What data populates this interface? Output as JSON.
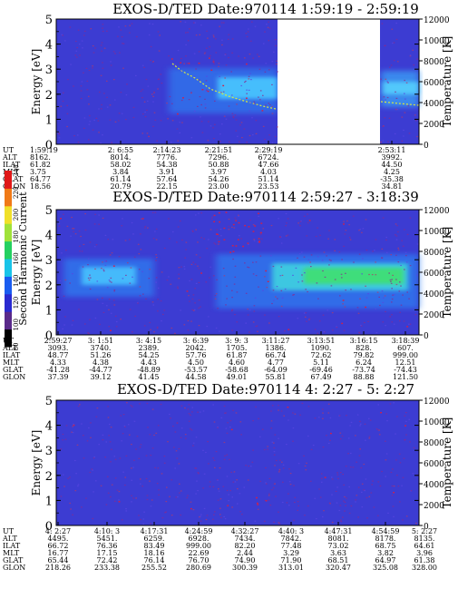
{
  "chart_data": [
    {
      "type": "heatmap",
      "title": "EXOS-D/TED   Date:970114  1:59:19 - 2:59:19",
      "ylabel": "Energy [eV]",
      "ylabel_right": "Temperature [K]",
      "ylim": [
        0,
        5
      ],
      "ylim_right": [
        0,
        12000
      ],
      "yticks": [
        "0",
        "1",
        "2",
        "3",
        "4",
        "5"
      ],
      "yticks_right": [
        "0",
        "2000",
        "4000",
        "6000",
        "8000",
        "10000",
        "12000"
      ],
      "data_gap": {
        "from": "2:33",
        "to": "2:53"
      },
      "enhanced_band": {
        "from": "2:14",
        "to": "2:33",
        "energy_center": 2.4,
        "intensity": "medium"
      },
      "enhanced_band_2": {
        "from": "2:53",
        "to": "2:59",
        "energy_center": 2.3,
        "intensity": "medium"
      },
      "temperature_trace": {
        "from": "2:14",
        "to": "2:33",
        "start_energy": 3.1,
        "end_energy": 1.7
      },
      "orbit_table": {
        "row_labels": [
          "UT",
          "ALT",
          "ILAT",
          "MLT",
          "GLAT",
          "GLON"
        ],
        "columns": [
          {
            "UT": "1:59:19",
            "ALT": "8162.",
            "ILAT": "61.82",
            "MLT": "3.75",
            "GLAT": "64.77",
            "GLON": "18.56"
          },
          {
            "UT": "2: 6:55",
            "ALT": "8014.",
            "ILAT": "58.02",
            "MLT": "3.84",
            "GLAT": "61.14",
            "GLON": "20.79"
          },
          {
            "UT": "2:14:23",
            "ALT": "7776.",
            "ILAT": "54.38",
            "MLT": "3.91",
            "GLAT": "57.64",
            "GLON": "22.15"
          },
          {
            "UT": "2:21:51",
            "ALT": "7296.",
            "ILAT": "50.88",
            "MLT": "3.97",
            "GLAT": "54.26",
            "GLON": "23.00"
          },
          {
            "UT": "2:29:19",
            "ALT": "6724.",
            "ILAT": "47.66",
            "MLT": "4.03",
            "GLAT": "51.14",
            "GLON": "23.53"
          },
          {
            "UT": "2:53:11",
            "ALT": "3992.",
            "ILAT": "44.50",
            "MLT": "4.25",
            "GLAT": "-35.38",
            "GLON": "34.81"
          }
        ]
      }
    },
    {
      "type": "heatmap",
      "title": "EXOS-D/TED   Date:970114  2:59:27 - 3:18:39",
      "ylabel": "Energy [eV]",
      "ylabel_right": "Temperature [K]",
      "ylim": [
        0,
        5
      ],
      "ylim_right": [
        0,
        12000
      ],
      "yticks": [
        "0",
        "1",
        "2",
        "3",
        "4",
        "5"
      ],
      "yticks_right": [
        "0",
        "2000",
        "4000",
        "6000",
        "8000",
        "10000",
        "12000"
      ],
      "enhanced_band": {
        "from": "2:59",
        "to": "3:05",
        "energy_center": 2.2,
        "intensity": "high"
      },
      "enhanced_band_2": {
        "from": "3:08",
        "to": "3:18",
        "energy_center": 1.9,
        "intensity": "very high"
      },
      "colorbar": {
        "label": "Second Harmonic Current",
        "ticks": [
          "80",
          "100",
          "120",
          "140",
          "160",
          "180",
          "200",
          "220",
          "240"
        ]
      },
      "orbit_table": {
        "row_labels": [
          "UT",
          "ALT",
          "ILAT",
          "MLT",
          "GLAT",
          "GLON"
        ],
        "columns": [
          {
            "UT": "2:59:27",
            "ALT": "3093.",
            "ILAT": "48.77",
            "MLT": "4.33",
            "GLAT": "-41.28",
            "GLON": "37.39"
          },
          {
            "UT": "3: 1:51",
            "ALT": "3740.",
            "ILAT": "51.26",
            "MLT": "4.38",
            "GLAT": "-44.77",
            "GLON": "39.12"
          },
          {
            "UT": "3: 4:15",
            "ALT": "2389.",
            "ILAT": "54.25",
            "MLT": "4.43",
            "GLAT": "-48.89",
            "GLON": "41.45"
          },
          {
            "UT": "3: 6:39",
            "ALT": "2042.",
            "ILAT": "57.76",
            "MLT": "4.50",
            "GLAT": "-53.57",
            "GLON": "44.58"
          },
          {
            "UT": "3: 9: 3",
            "ALT": "1705.",
            "ILAT": "61.87",
            "MLT": "4.60",
            "GLAT": "-58.68",
            "GLON": "49.01"
          },
          {
            "UT": "3:11:27",
            "ALT": "1386.",
            "ILAT": "66.74",
            "MLT": "4.77",
            "GLAT": "-64.09",
            "GLON": "55.81"
          },
          {
            "UT": "3:13:51",
            "ALT": "1090.",
            "ILAT": "72.62",
            "MLT": "5.11",
            "GLAT": "-69.46",
            "GLON": "67.49"
          },
          {
            "UT": "3:16:15",
            "ALT": "828.",
            "ILAT": "79.82",
            "MLT": "6.24",
            "GLAT": "-73.74",
            "GLON": "88.88"
          },
          {
            "UT": "3:18:39",
            "ALT": "607.",
            "ILAT": "999.00",
            "MLT": "12.51",
            "GLAT": "-74.43",
            "GLON": "121.50"
          }
        ]
      }
    },
    {
      "type": "heatmap",
      "title": "EXOS-D/TED   Date:970114  4: 2:27 - 5: 2:27",
      "ylabel": "Energy [eV]",
      "ylabel_right": "Temperature [K]",
      "ylim": [
        0,
        5
      ],
      "ylim_right": [
        0,
        12000
      ],
      "yticks": [
        "0",
        "1",
        "2",
        "3",
        "4",
        "5"
      ],
      "yticks_right": [
        "0",
        "2000",
        "4000",
        "6000",
        "8000",
        "10000",
        "12000"
      ],
      "orbit_table": {
        "row_labels": [
          "UT",
          "ALT",
          "ILAT",
          "MLT",
          "GLAT",
          "GLON"
        ],
        "columns": [
          {
            "UT": "4: 2:27",
            "ALT": "4495.",
            "ILAT": "66.72",
            "MLT": "16.77",
            "GLAT": "65.44",
            "GLON": "218.26"
          },
          {
            "UT": "4:10: 3",
            "ALT": "5451.",
            "ILAT": "76.36",
            "MLT": "17.15",
            "GLAT": "72.42",
            "GLON": "233.38"
          },
          {
            "UT": "4:17:31",
            "ALT": "6259.",
            "ILAT": "83.49",
            "MLT": "18.16",
            "GLAT": "76.14",
            "GLON": "255.52"
          },
          {
            "UT": "4:24:59",
            "ALT": "6928.",
            "ILAT": "999.00",
            "MLT": "22.69",
            "GLAT": "76.70",
            "GLON": "280.69"
          },
          {
            "UT": "4:32:27",
            "ALT": "7434.",
            "ILAT": "82.20",
            "MLT": "2.44",
            "GLAT": "74.90",
            "GLON": "300.39"
          },
          {
            "UT": "4:40: 3",
            "ALT": "7842.",
            "ILAT": "77.48",
            "MLT": "3.29",
            "GLAT": "71.90",
            "GLON": "313.01"
          },
          {
            "UT": "4:47:31",
            "ALT": "8081.",
            "ILAT": "73.02",
            "MLT": "3.63",
            "GLAT": "68.51",
            "GLON": "320.47"
          },
          {
            "UT": "4:54:59",
            "ALT": "8178.",
            "ILAT": "68.75",
            "MLT": "3.82",
            "GLAT": "64.97",
            "GLON": "325.08"
          },
          {
            "UT": "5: 2:27",
            "ALT": "8135.",
            "ILAT": "64.61",
            "MLT": "3.96",
            "GLAT": "61.38",
            "GLON": "328.00"
          }
        ]
      }
    }
  ]
}
